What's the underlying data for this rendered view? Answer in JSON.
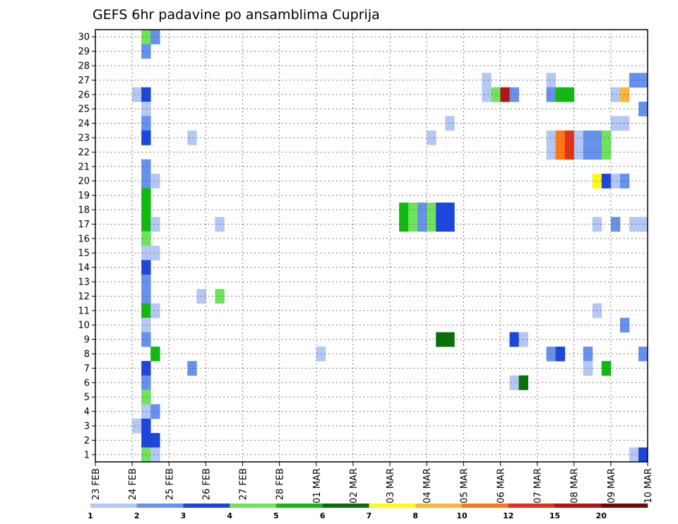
{
  "chart_data": {
    "type": "heatmap",
    "title": "GEFS 6hr padavine po ansamblima Cuprija",
    "x_tick_labels": [
      "23 FEB",
      "24 FEB",
      "25 FEB",
      "26 FEB",
      "27 FEB",
      "28 FEB",
      "01 MAR",
      "02 MAR",
      "03 MAR",
      "04 MAR",
      "05 MAR",
      "06 MAR",
      "07 MAR",
      "08 MAR",
      "09 MAR",
      "10 MAR"
    ],
    "y_tick_labels": [
      "1",
      "2",
      "3",
      "4",
      "5",
      "6",
      "7",
      "8",
      "9",
      "10",
      "11",
      "12",
      "13",
      "14",
      "15",
      "16",
      "17",
      "18",
      "19",
      "20",
      "21",
      "22",
      "23",
      "24",
      "25",
      "26",
      "27",
      "28",
      "29",
      "30"
    ],
    "x_range": [
      "23 FEB 00Z",
      "10 MAR 00Z"
    ],
    "time_step_hours": 6,
    "y_range": [
      0,
      30
    ],
    "grid": true,
    "legend_placement": "bottom",
    "color_scale": {
      "labels": [
        "1",
        "2",
        "3",
        "4",
        "5",
        "6",
        "7",
        "8",
        "10",
        "12",
        "15",
        "20"
      ],
      "colors": [
        "#b4c8f5",
        "#6691ec",
        "#1c46dc",
        "#6ee45a",
        "#10bb10",
        "#087008",
        "#fffa14",
        "#ffb432",
        "#ff7814",
        "#e13214",
        "#b41414",
        "#6e0a0a"
      ]
    },
    "cells": [
      {
        "time": "24 FEB 06Z",
        "member": 30,
        "cls": 4
      },
      {
        "time": "24 FEB 12Z",
        "member": 30,
        "cls": 2
      },
      {
        "time": "24 FEB 06Z",
        "member": 29,
        "cls": 2
      },
      {
        "time": "24 FEB 00Z",
        "member": 26,
        "cls": 1
      },
      {
        "time": "24 FEB 06Z",
        "member": 26,
        "cls": 3
      },
      {
        "time": "24 FEB 06Z",
        "member": 25,
        "cls": 1
      },
      {
        "time": "24 FEB 06Z",
        "member": 24,
        "cls": 2
      },
      {
        "time": "24 FEB 06Z",
        "member": 23,
        "cls": 3
      },
      {
        "time": "25 FEB 12Z",
        "member": 23,
        "cls": 1
      },
      {
        "time": "24 FEB 06Z",
        "member": 21,
        "cls": 2
      },
      {
        "time": "24 FEB 06Z",
        "member": 20,
        "cls": 2
      },
      {
        "time": "24 FEB 12Z",
        "member": 20,
        "cls": 1
      },
      {
        "time": "24 FEB 06Z",
        "member": 19,
        "cls": 5
      },
      {
        "time": "24 FEB 06Z",
        "member": 18,
        "cls": 5
      },
      {
        "time": "24 FEB 06Z",
        "member": 17,
        "cls": 5
      },
      {
        "time": "24 FEB 12Z",
        "member": 17,
        "cls": 1
      },
      {
        "time": "26 FEB 06Z",
        "member": 17,
        "cls": 1
      },
      {
        "time": "24 FEB 06Z",
        "member": 16,
        "cls": 4
      },
      {
        "time": "24 FEB 06Z",
        "member": 15,
        "cls": 1
      },
      {
        "time": "24 FEB 12Z",
        "member": 15,
        "cls": 1
      },
      {
        "time": "24 FEB 06Z",
        "member": 14,
        "cls": 3
      },
      {
        "time": "24 FEB 06Z",
        "member": 13,
        "cls": 2
      },
      {
        "time": "24 FEB 06Z",
        "member": 12,
        "cls": 2
      },
      {
        "time": "25 FEB 18Z",
        "member": 12,
        "cls": 1
      },
      {
        "time": "26 FEB 06Z",
        "member": 12,
        "cls": 4
      },
      {
        "time": "24 FEB 06Z",
        "member": 11,
        "cls": 5
      },
      {
        "time": "24 FEB 12Z",
        "member": 11,
        "cls": 1
      },
      {
        "time": "24 FEB 06Z",
        "member": 10,
        "cls": 1
      },
      {
        "time": "24 FEB 06Z",
        "member": 9,
        "cls": 2
      },
      {
        "time": "24 FEB 12Z",
        "member": 8,
        "cls": 5
      },
      {
        "time": "01 MAR 00Z",
        "member": 8,
        "cls": 1
      },
      {
        "time": "24 FEB 06Z",
        "member": 7,
        "cls": 3
      },
      {
        "time": "25 FEB 12Z",
        "member": 7,
        "cls": 2
      },
      {
        "time": "24 FEB 06Z",
        "member": 6,
        "cls": 2
      },
      {
        "time": "24 FEB 06Z",
        "member": 5,
        "cls": 4
      },
      {
        "time": "24 FEB 06Z",
        "member": 4,
        "cls": 1
      },
      {
        "time": "24 FEB 12Z",
        "member": 4,
        "cls": 2
      },
      {
        "time": "24 FEB 00Z",
        "member": 3,
        "cls": 1
      },
      {
        "time": "24 FEB 06Z",
        "member": 3,
        "cls": 3
      },
      {
        "time": "24 FEB 06Z",
        "member": 2,
        "cls": 3
      },
      {
        "time": "24 FEB 12Z",
        "member": 2,
        "cls": 3
      },
      {
        "time": "24 FEB 06Z",
        "member": 1,
        "cls": 4
      },
      {
        "time": "24 FEB 12Z",
        "member": 1,
        "cls": 1
      },
      {
        "time": "03 MAR 06Z",
        "member": 18,
        "cls": 5
      },
      {
        "time": "03 MAR 12Z",
        "member": 18,
        "cls": 4
      },
      {
        "time": "03 MAR 18Z",
        "member": 18,
        "cls": 2
      },
      {
        "time": "04 MAR 00Z",
        "member": 18,
        "cls": 4
      },
      {
        "time": "04 MAR 06Z",
        "member": 18,
        "cls": 3
      },
      {
        "time": "04 MAR 12Z",
        "member": 18,
        "cls": 3
      },
      {
        "time": "03 MAR 06Z",
        "member": 17,
        "cls": 5
      },
      {
        "time": "03 MAR 12Z",
        "member": 17,
        "cls": 4
      },
      {
        "time": "03 MAR 18Z",
        "member": 17,
        "cls": 2
      },
      {
        "time": "04 MAR 00Z",
        "member": 17,
        "cls": 4
      },
      {
        "time": "04 MAR 06Z",
        "member": 17,
        "cls": 3
      },
      {
        "time": "04 MAR 12Z",
        "member": 17,
        "cls": 3
      },
      {
        "time": "04 MAR 00Z",
        "member": 23,
        "cls": 1
      },
      {
        "time": "04 MAR 12Z",
        "member": 24,
        "cls": 1
      },
      {
        "time": "04 MAR 06Z",
        "member": 9,
        "cls": 6
      },
      {
        "time": "04 MAR 12Z",
        "member": 9,
        "cls": 6
      },
      {
        "time": "05 MAR 12Z",
        "member": 27,
        "cls": 1
      },
      {
        "time": "05 MAR 12Z",
        "member": 26,
        "cls": 1
      },
      {
        "time": "05 MAR 18Z",
        "member": 26,
        "cls": 4
      },
      {
        "time": "06 MAR 00Z",
        "member": 26,
        "cls": 11
      },
      {
        "time": "06 MAR 06Z",
        "member": 26,
        "cls": 2
      },
      {
        "time": "06 MAR 06Z",
        "member": 9,
        "cls": 3
      },
      {
        "time": "06 MAR 12Z",
        "member": 9,
        "cls": 1
      },
      {
        "time": "06 MAR 06Z",
        "member": 6,
        "cls": 1
      },
      {
        "time": "06 MAR 12Z",
        "member": 6,
        "cls": 6
      },
      {
        "time": "07 MAR 06Z",
        "member": 27,
        "cls": 1
      },
      {
        "time": "07 MAR 06Z",
        "member": 26,
        "cls": 2
      },
      {
        "time": "07 MAR 12Z",
        "member": 26,
        "cls": 5
      },
      {
        "time": "07 MAR 18Z",
        "member": 26,
        "cls": 5
      },
      {
        "time": "07 MAR 06Z",
        "member": 23,
        "cls": 1
      },
      {
        "time": "07 MAR 12Z",
        "member": 23,
        "cls": 9
      },
      {
        "time": "07 MAR 18Z",
        "member": 23,
        "cls": 10
      },
      {
        "time": "08 MAR 00Z",
        "member": 23,
        "cls": 1
      },
      {
        "time": "08 MAR 06Z",
        "member": 23,
        "cls": 2
      },
      {
        "time": "08 MAR 12Z",
        "member": 23,
        "cls": 2
      },
      {
        "time": "08 MAR 18Z",
        "member": 23,
        "cls": 4
      },
      {
        "time": "07 MAR 06Z",
        "member": 22,
        "cls": 1
      },
      {
        "time": "07 MAR 12Z",
        "member": 22,
        "cls": 9
      },
      {
        "time": "07 MAR 18Z",
        "member": 22,
        "cls": 10
      },
      {
        "time": "08 MAR 00Z",
        "member": 22,
        "cls": 1
      },
      {
        "time": "08 MAR 06Z",
        "member": 22,
        "cls": 2
      },
      {
        "time": "08 MAR 12Z",
        "member": 22,
        "cls": 2
      },
      {
        "time": "08 MAR 18Z",
        "member": 22,
        "cls": 4
      },
      {
        "time": "07 MAR 06Z",
        "member": 8,
        "cls": 2
      },
      {
        "time": "07 MAR 12Z",
        "member": 8,
        "cls": 3
      },
      {
        "time": "08 MAR 06Z",
        "member": 8,
        "cls": 2
      },
      {
        "time": "08 MAR 06Z",
        "member": 7,
        "cls": 1
      },
      {
        "time": "08 MAR 18Z",
        "member": 7,
        "cls": 5
      },
      {
        "time": "08 MAR 12Z",
        "member": 20,
        "cls": 7
      },
      {
        "time": "08 MAR 18Z",
        "member": 20,
        "cls": 3
      },
      {
        "time": "09 MAR 00Z",
        "member": 20,
        "cls": 1
      },
      {
        "time": "09 MAR 06Z",
        "member": 20,
        "cls": 2
      },
      {
        "time": "08 MAR 12Z",
        "member": 17,
        "cls": 1
      },
      {
        "time": "09 MAR 00Z",
        "member": 17,
        "cls": 2
      },
      {
        "time": "09 MAR 12Z",
        "member": 17,
        "cls": 1
      },
      {
        "time": "09 MAR 18Z",
        "member": 17,
        "cls": 1
      },
      {
        "time": "08 MAR 12Z",
        "member": 11,
        "cls": 1
      },
      {
        "time": "09 MAR 00Z",
        "member": 26,
        "cls": 1
      },
      {
        "time": "09 MAR 06Z",
        "member": 26,
        "cls": 8
      },
      {
        "time": "09 MAR 00Z",
        "member": 24,
        "cls": 1
      },
      {
        "time": "09 MAR 06Z",
        "member": 24,
        "cls": 1
      },
      {
        "time": "09 MAR 06Z",
        "member": 10,
        "cls": 2
      },
      {
        "time": "09 MAR 12Z",
        "member": 27,
        "cls": 2
      },
      {
        "time": "09 MAR 18Z",
        "member": 27,
        "cls": 2
      },
      {
        "time": "09 MAR 18Z",
        "member": 25,
        "cls": 2
      },
      {
        "time": "09 MAR 18Z",
        "member": 8,
        "cls": 2
      },
      {
        "time": "09 MAR 12Z",
        "member": 1,
        "cls": 1
      },
      {
        "time": "09 MAR 18Z",
        "member": 1,
        "cls": 3
      }
    ]
  }
}
